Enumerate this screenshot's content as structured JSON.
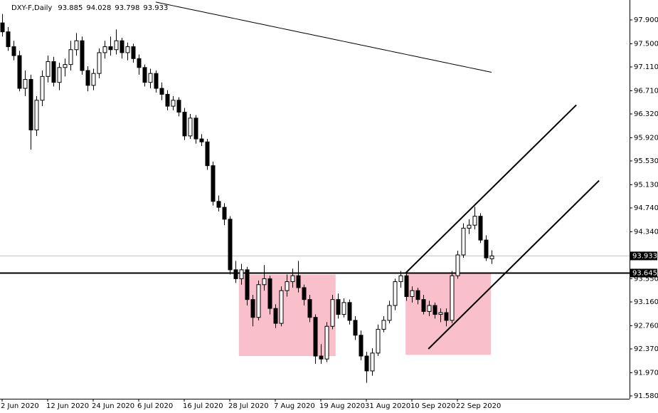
{
  "chart_data": {
    "type": "candlestick",
    "title": "DXY-F,Daily",
    "header_values": [
      93.885,
      94.028,
      93.798,
      93.933
    ],
    "categories": [
      "2 Jun 2020",
      null,
      null,
      null,
      null,
      null,
      null,
      null,
      "12 Jun 2020",
      null,
      null,
      null,
      null,
      null,
      null,
      null,
      "24 Jun 2020",
      null,
      null,
      null,
      null,
      null,
      null,
      null,
      "6 Jul 2020",
      null,
      null,
      null,
      null,
      null,
      null,
      null,
      "16 Jul 2020",
      null,
      null,
      null,
      null,
      null,
      null,
      null,
      "28 Jul 2020",
      null,
      null,
      null,
      null,
      null,
      null,
      null,
      "7 Aug 2020",
      null,
      null,
      null,
      null,
      null,
      null,
      null,
      "19 Aug 2020",
      null,
      null,
      null,
      null,
      null,
      null,
      null,
      "31 Aug 2020",
      null,
      null,
      null,
      null,
      null,
      null,
      null,
      "10 Sep 2020",
      null,
      null,
      null,
      null,
      null,
      null,
      null,
      "22 Sep 2020",
      null,
      null,
      null,
      null,
      null,
      null
    ],
    "ohlc": [
      [
        97.85,
        98.0,
        97.62,
        97.7
      ],
      [
        97.7,
        97.78,
        97.38,
        97.45
      ],
      [
        97.45,
        97.55,
        97.22,
        97.3
      ],
      [
        97.3,
        97.38,
        96.7,
        96.75
      ],
      [
        96.75,
        97.05,
        96.62,
        96.9
      ],
      [
        96.9,
        96.98,
        95.72,
        96.05
      ],
      [
        96.05,
        96.62,
        95.95,
        96.55
      ],
      [
        96.55,
        97.05,
        96.45,
        96.95
      ],
      [
        96.95,
        97.3,
        96.85,
        97.2
      ],
      [
        97.2,
        97.28,
        96.78,
        96.85
      ],
      [
        96.85,
        97.18,
        96.72,
        97.1
      ],
      [
        97.1,
        97.25,
        96.95,
        97.15
      ],
      [
        97.15,
        97.55,
        97.05,
        97.4
      ],
      [
        97.4,
        97.68,
        97.3,
        97.55
      ],
      [
        97.55,
        97.62,
        96.98,
        97.05
      ],
      [
        97.05,
        97.12,
        96.7,
        96.8
      ],
      [
        96.8,
        97.08,
        96.72,
        97.0
      ],
      [
        97.0,
        97.42,
        96.92,
        97.35
      ],
      [
        97.35,
        97.55,
        97.25,
        97.45
      ],
      [
        97.45,
        97.62,
        97.3,
        97.4
      ],
      [
        97.4,
        97.74,
        97.32,
        97.55
      ],
      [
        97.55,
        97.6,
        97.25,
        97.35
      ],
      [
        97.35,
        97.52,
        97.22,
        97.45
      ],
      [
        97.45,
        97.5,
        97.18,
        97.25
      ],
      [
        97.25,
        97.32,
        96.98,
        97.1
      ],
      [
        97.1,
        97.15,
        96.78,
        96.85
      ],
      [
        96.85,
        97.08,
        96.75,
        97.0
      ],
      [
        97.0,
        97.05,
        96.68,
        96.75
      ],
      [
        96.75,
        96.85,
        96.55,
        96.65
      ],
      [
        96.65,
        96.72,
        96.38,
        96.45
      ],
      [
        96.45,
        96.62,
        96.38,
        96.55
      ],
      [
        96.55,
        96.6,
        96.28,
        96.35
      ],
      [
        96.35,
        96.42,
        95.88,
        95.95
      ],
      [
        95.95,
        96.32,
        95.9,
        96.25
      ],
      [
        96.25,
        96.3,
        95.82,
        95.9
      ],
      [
        95.9,
        95.98,
        95.78,
        95.85
      ],
      [
        95.85,
        95.9,
        95.38,
        95.45
      ],
      [
        95.45,
        95.52,
        94.78,
        94.85
      ],
      [
        94.85,
        94.95,
        94.68,
        94.75
      ],
      [
        94.75,
        94.82,
        94.45,
        94.55
      ],
      [
        94.55,
        94.6,
        93.62,
        93.7
      ],
      [
        93.7,
        93.85,
        93.48,
        93.55
      ],
      [
        93.55,
        93.8,
        93.45,
        93.7
      ],
      [
        93.7,
        93.75,
        93.1,
        93.2
      ],
      [
        93.2,
        93.28,
        92.75,
        92.9
      ],
      [
        92.9,
        93.52,
        92.85,
        93.45
      ],
      [
        93.45,
        93.78,
        93.35,
        93.55
      ],
      [
        93.55,
        93.6,
        92.95,
        93.05
      ],
      [
        93.05,
        93.12,
        92.72,
        92.8
      ],
      [
        92.8,
        93.42,
        92.75,
        93.35
      ],
      [
        93.35,
        93.62,
        93.25,
        93.5
      ],
      [
        93.5,
        93.72,
        93.4,
        93.6
      ],
      [
        93.6,
        93.85,
        93.32,
        93.4
      ],
      [
        93.4,
        93.45,
        93.1,
        93.2
      ],
      [
        93.2,
        93.28,
        92.82,
        92.9
      ],
      [
        92.9,
        92.95,
        92.12,
        92.25
      ],
      [
        92.25,
        92.45,
        92.12,
        92.2
      ],
      [
        92.2,
        92.82,
        92.15,
        92.75
      ],
      [
        92.75,
        93.28,
        92.7,
        93.2
      ],
      [
        93.2,
        93.3,
        92.88,
        92.95
      ],
      [
        92.95,
        93.22,
        92.9,
        93.15
      ],
      [
        93.15,
        93.2,
        92.78,
        92.85
      ],
      [
        92.85,
        92.92,
        92.52,
        92.6
      ],
      [
        92.6,
        92.68,
        92.18,
        92.25
      ],
      [
        92.25,
        92.32,
        91.8,
        92.0
      ],
      [
        92.0,
        92.38,
        91.92,
        92.3
      ],
      [
        92.3,
        92.78,
        92.25,
        92.7
      ],
      [
        92.7,
        92.92,
        92.65,
        92.85
      ],
      [
        92.85,
        93.18,
        92.8,
        93.1
      ],
      [
        93.1,
        93.55,
        93.02,
        93.5
      ],
      [
        93.5,
        93.68,
        93.4,
        93.6
      ],
      [
        93.6,
        93.65,
        93.18,
        93.25
      ],
      [
        93.25,
        93.42,
        93.15,
        93.35
      ],
      [
        93.35,
        93.4,
        93.12,
        93.2
      ],
      [
        93.2,
        93.28,
        92.95,
        93.0
      ],
      [
        93.0,
        93.18,
        92.92,
        93.1
      ],
      [
        93.1,
        93.15,
        92.88,
        92.95
      ],
      [
        92.95,
        93.05,
        92.82,
        92.98
      ],
      [
        92.98,
        93.05,
        92.75,
        92.85
      ],
      [
        92.85,
        93.68,
        92.8,
        93.6
      ],
      [
        93.6,
        94.02,
        93.55,
        93.95
      ],
      [
        93.95,
        94.48,
        93.9,
        94.4
      ],
      [
        94.4,
        94.55,
        94.3,
        94.45
      ],
      [
        94.45,
        94.76,
        94.38,
        94.6
      ],
      [
        94.6,
        94.65,
        94.15,
        94.2
      ],
      [
        94.2,
        94.28,
        93.85,
        93.9
      ],
      [
        93.885,
        94.028,
        93.798,
        93.933
      ]
    ],
    "up_color": "#ffffff",
    "down_color": "#000000",
    "outline_color": "#000000",
    "moving_average": {
      "color": "#000000",
      "values": [
        null,
        null,
        null,
        null,
        null,
        null,
        null,
        null,
        null,
        null,
        null,
        null,
        null,
        null,
        null,
        null,
        null,
        null,
        null,
        null,
        null,
        null,
        null,
        null,
        null,
        null,
        null,
        98.2,
        98.18,
        98.16,
        98.14,
        98.12,
        98.1,
        98.08,
        98.06,
        98.04,
        98.02,
        98.0,
        97.98,
        97.96,
        97.94,
        97.92,
        97.9,
        97.88,
        97.86,
        97.84,
        97.82,
        97.8,
        97.78,
        97.76,
        97.74,
        97.72,
        97.7,
        97.68,
        97.66,
        97.64,
        97.62,
        97.6,
        97.58,
        97.56,
        97.54,
        97.52,
        97.5,
        97.48,
        97.46,
        97.44,
        97.42,
        97.4,
        97.38,
        97.36,
        97.34,
        97.32,
        97.3,
        97.28,
        97.26,
        97.24,
        97.22,
        97.2,
        97.18,
        97.16,
        97.14,
        97.12,
        97.1,
        97.08,
        97.06,
        97.04,
        97.02
      ]
    },
    "hlines": [
      {
        "value": 93.933,
        "label": "93.933",
        "color": "#c0c0c0",
        "width": 1
      },
      {
        "value": 93.645,
        "label": "93.645",
        "color": "#000000",
        "width": 2
      }
    ],
    "zones": [
      {
        "x": [
          41.6,
          58.6
        ],
        "y": [
          93.62,
          92.25
        ],
        "color": "#f9c0cb"
      },
      {
        "x": [
          70.9,
          85.9
        ],
        "y": [
          93.65,
          92.27
        ],
        "color": "#f9c0cb"
      }
    ],
    "trendlines": [
      {
        "x": [
          70.9,
          100.9
        ],
        "y": [
          93.645,
          96.47
        ]
      },
      {
        "x": [
          74.9,
          104.9
        ],
        "y": [
          92.37,
          95.2
        ]
      }
    ],
    "xlim": [
      -0.375,
      110.25
    ],
    "ylim": [
      91.532,
      98.235
    ],
    "yticks": [
      {
        "value": 97.9,
        "label": "97.900"
      },
      {
        "value": 97.5,
        "label": "97.500"
      },
      {
        "value": 97.11,
        "label": "97.110"
      },
      {
        "value": 96.71,
        "label": "96.710"
      },
      {
        "value": 96.32,
        "label": "96.320"
      },
      {
        "value": 95.92,
        "label": "95.920"
      },
      {
        "value": 95.53,
        "label": "95.530"
      },
      {
        "value": 95.13,
        "label": "95.130"
      },
      {
        "value": 94.74,
        "label": "94.740"
      },
      {
        "value": 94.34,
        "label": "94.340"
      },
      {
        "value": 93.55,
        "label": "93.550"
      },
      {
        "value": 93.16,
        "label": "93.160"
      },
      {
        "value": 92.76,
        "label": "92.760"
      },
      {
        "value": 92.37,
        "label": "92.370"
      },
      {
        "value": 91.97,
        "label": "91.970"
      },
      {
        "value": 91.58,
        "label": "91.580"
      }
    ]
  }
}
